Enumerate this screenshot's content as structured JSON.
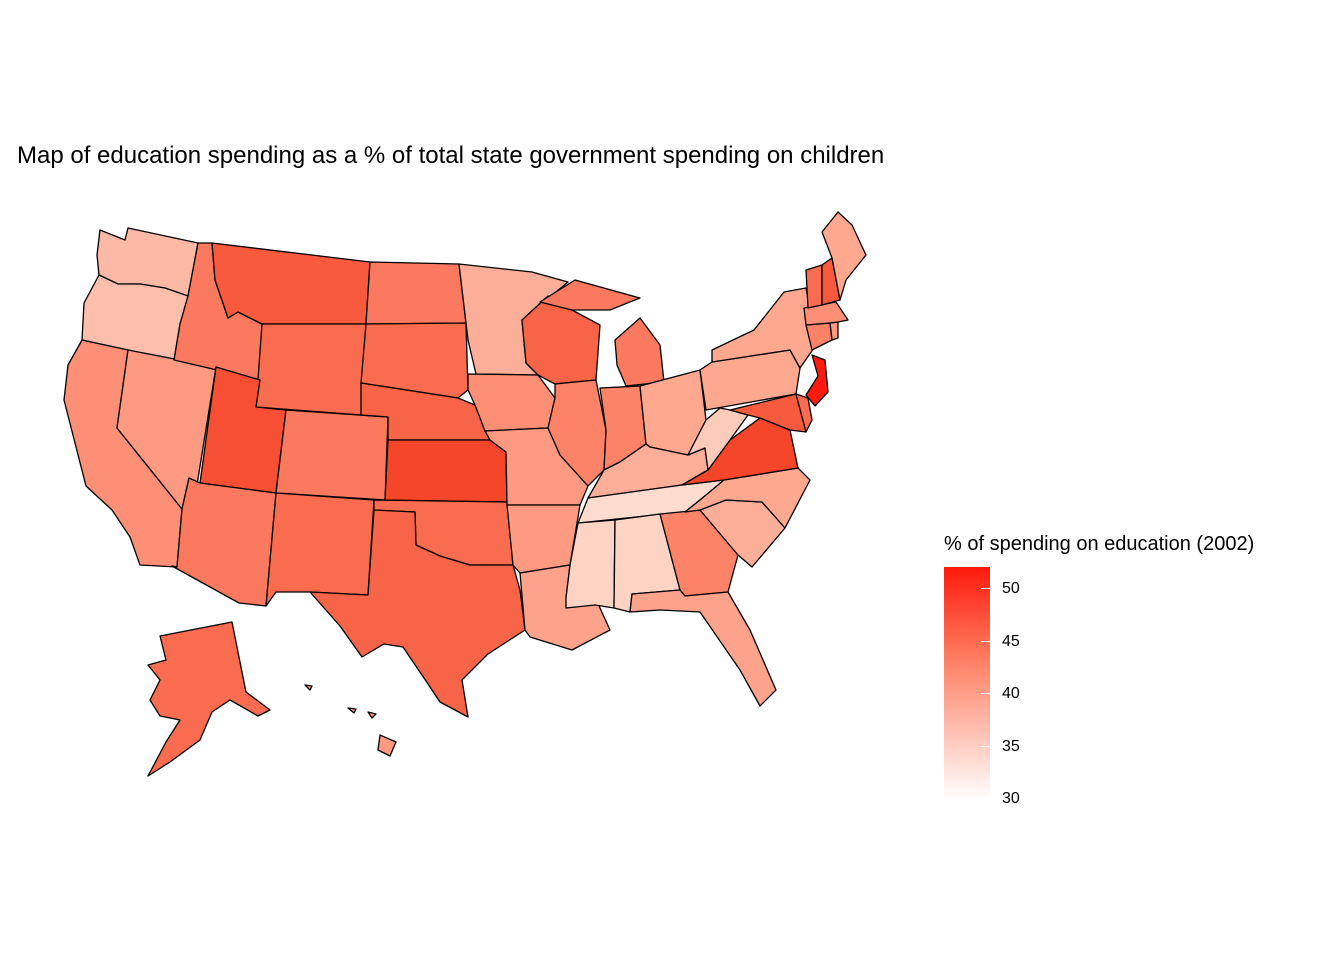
{
  "title": "Map of education spending as a % of total state government spending on children",
  "legend": {
    "title": "% of spending on education (2002)",
    "ticks": [
      "50",
      "45",
      "40",
      "35",
      "30"
    ],
    "low_color": "#ffffff",
    "high_color": "#fe1a0d",
    "range": [
      30,
      52
    ]
  },
  "states": [
    {
      "name": "Washington",
      "value": 37,
      "color": "#fdb9a5"
    },
    {
      "name": "Oregon",
      "value": 36,
      "color": "#fdbfac"
    },
    {
      "name": "California",
      "value": 42,
      "color": "#fd8f76"
    },
    {
      "name": "Nevada",
      "value": 41,
      "color": "#fd9a81"
    },
    {
      "name": "Idaho",
      "value": 44,
      "color": "#fb7a5f"
    },
    {
      "name": "Montana",
      "value": 47,
      "color": "#f85a3e"
    },
    {
      "name": "Wyoming",
      "value": 45,
      "color": "#fa6c50"
    },
    {
      "name": "Utah",
      "value": 48,
      "color": "#f64f33"
    },
    {
      "name": "Arizona",
      "value": 44,
      "color": "#fb7a5f"
    },
    {
      "name": "Colorado",
      "value": 44,
      "color": "#fb7a5f"
    },
    {
      "name": "New Mexico",
      "value": 45,
      "color": "#fa6c50"
    },
    {
      "name": "North Dakota",
      "value": 44,
      "color": "#fb7a5f"
    },
    {
      "name": "South Dakota",
      "value": 45,
      "color": "#fa6c50"
    },
    {
      "name": "Nebraska",
      "value": 46,
      "color": "#f86447"
    },
    {
      "name": "Kansas",
      "value": 49,
      "color": "#f54629"
    },
    {
      "name": "Oklahoma",
      "value": 45,
      "color": "#fa6c50"
    },
    {
      "name": "Texas",
      "value": 46,
      "color": "#f86447"
    },
    {
      "name": "Minnesota",
      "value": 38,
      "color": "#fdae98"
    },
    {
      "name": "Iowa",
      "value": 42,
      "color": "#fd8f76"
    },
    {
      "name": "Missouri",
      "value": 41,
      "color": "#fd9a81"
    },
    {
      "name": "Arkansas",
      "value": 41,
      "color": "#fd9a81"
    },
    {
      "name": "Louisiana",
      "value": 40,
      "color": "#fda28b"
    },
    {
      "name": "Wisconsin",
      "value": 46,
      "color": "#f86447"
    },
    {
      "name": "Illinois",
      "value": 43,
      "color": "#fc8368"
    },
    {
      "name": "Michigan",
      "value": 44,
      "color": "#fb7a5f"
    },
    {
      "name": "Indiana",
      "value": 43,
      "color": "#fc8368"
    },
    {
      "name": "Ohio",
      "value": 39,
      "color": "#fda88f"
    },
    {
      "name": "Kentucky",
      "value": 38,
      "color": "#fdae98"
    },
    {
      "name": "Tennessee",
      "value": 33,
      "color": "#fddccf"
    },
    {
      "name": "Mississippi",
      "value": 34,
      "color": "#fdd3c4"
    },
    {
      "name": "Alabama",
      "value": 34,
      "color": "#fdd3c4"
    },
    {
      "name": "Georgia",
      "value": 43,
      "color": "#fc8368"
    },
    {
      "name": "Florida",
      "value": 40,
      "color": "#fda28b"
    },
    {
      "name": "South Carolina",
      "value": 38,
      "color": "#fdae98"
    },
    {
      "name": "North Carolina",
      "value": 39,
      "color": "#fda88f"
    },
    {
      "name": "Virginia",
      "value": 49,
      "color": "#f54629"
    },
    {
      "name": "West Virginia",
      "value": 35,
      "color": "#fdcbb9"
    },
    {
      "name": "Pennsylvania",
      "value": 39,
      "color": "#fda88f"
    },
    {
      "name": "New York",
      "value": 39,
      "color": "#fda88f"
    },
    {
      "name": "Maryland",
      "value": 47,
      "color": "#f85a3e"
    },
    {
      "name": "Delaware",
      "value": 45,
      "color": "#fa6c50"
    },
    {
      "name": "New Jersey",
      "value": 52,
      "color": "#fe1a0d"
    },
    {
      "name": "Connecticut",
      "value": 43,
      "color": "#fc8368"
    },
    {
      "name": "Rhode Island",
      "value": 41,
      "color": "#fd9a81"
    },
    {
      "name": "Massachusetts",
      "value": 42,
      "color": "#fd8f76"
    },
    {
      "name": "Vermont",
      "value": 45,
      "color": "#fa6c50"
    },
    {
      "name": "New Hampshire",
      "value": 47,
      "color": "#f85a3e"
    },
    {
      "name": "Maine",
      "value": 39,
      "color": "#fda88f"
    },
    {
      "name": "Alaska",
      "value": 45,
      "color": "#fa6c50"
    },
    {
      "name": "Hawaii",
      "value": 41,
      "color": "#fd9a81"
    }
  ]
}
